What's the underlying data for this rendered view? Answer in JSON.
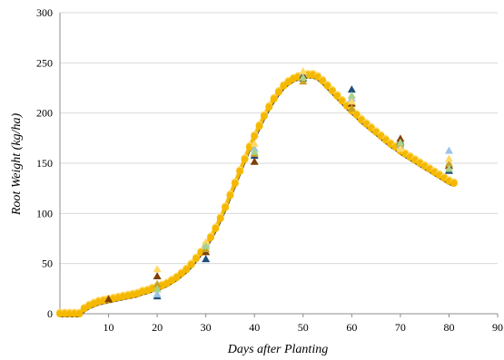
{
  "chart_data": {
    "type": "scatter",
    "title": "",
    "xlabel": "Days after Planting",
    "ylabel": "Root Weight (kg/ha)",
    "xlim": [
      0,
      90
    ],
    "ylim": [
      0,
      300
    ],
    "xticks": [
      10,
      20,
      30,
      40,
      50,
      60,
      70,
      80,
      90
    ],
    "yticks": [
      0,
      50,
      100,
      150,
      200,
      250,
      300
    ],
    "grid": "horizontal",
    "legend": "none",
    "colors": {
      "curve_light": "#FFD966",
      "curve_main": "#F5B800",
      "curve_dark": "#7F6A2A",
      "curve_darkest": "#3A3A3A",
      "grid": "#D9D9D9",
      "axis": "#8C8C8C"
    },
    "curve": {
      "x": [
        0,
        1,
        2,
        3,
        4,
        5,
        6,
        7,
        8,
        9,
        10,
        11,
        12,
        13,
        14,
        15,
        16,
        17,
        18,
        19,
        20,
        21,
        22,
        23,
        24,
        25,
        26,
        27,
        28,
        29,
        30,
        31,
        32,
        33,
        34,
        35,
        36,
        37,
        38,
        39,
        40,
        41,
        42,
        43,
        44,
        45,
        46,
        47,
        48,
        49,
        50,
        51,
        52,
        53,
        54,
        55,
        56,
        57,
        58,
        59,
        60,
        61,
        62,
        63,
        64,
        65,
        66,
        67,
        68,
        69,
        70,
        71,
        72,
        73,
        74,
        75,
        76,
        77,
        78,
        79,
        80,
        81
      ],
      "y": [
        0,
        0,
        0,
        0,
        0,
        5,
        8,
        10,
        12,
        13,
        14,
        15,
        16,
        17,
        18,
        19,
        20,
        22,
        23,
        25,
        26,
        28,
        30,
        33,
        36,
        40,
        44,
        49,
        55,
        61,
        68,
        76,
        85,
        95,
        106,
        118,
        130,
        142,
        154,
        166,
        177,
        187,
        197,
        206,
        214,
        221,
        227,
        231,
        234,
        236,
        237,
        238,
        238,
        236,
        232,
        227,
        222,
        217,
        212,
        207,
        202,
        198,
        193,
        189,
        185,
        181,
        177,
        173,
        169,
        166,
        162,
        159,
        156,
        153,
        150,
        147,
        144,
        141,
        138,
        135,
        132,
        130
      ]
    },
    "series": [
      {
        "color": "#1F4E79",
        "points": [
          [
            20,
            18
          ],
          [
            30,
            55
          ],
          [
            40,
            158
          ],
          [
            50,
            235
          ],
          [
            60,
            224
          ],
          [
            70,
            172
          ],
          [
            80,
            143
          ]
        ]
      },
      {
        "color": "#9DC3E6",
        "points": [
          [
            20,
            20
          ],
          [
            30,
            70
          ],
          [
            40,
            165
          ],
          [
            50,
            240
          ],
          [
            60,
            215
          ],
          [
            70,
            168
          ],
          [
            80,
            163
          ]
        ]
      },
      {
        "color": "#7F3F00",
        "points": [
          [
            10,
            15
          ],
          [
            20,
            38
          ],
          [
            30,
            62
          ],
          [
            40,
            152
          ],
          [
            50,
            238
          ],
          [
            60,
            210
          ],
          [
            70,
            175
          ],
          [
            80,
            148
          ]
        ]
      },
      {
        "color": "#C9A227",
        "points": [
          [
            20,
            30
          ],
          [
            30,
            65
          ],
          [
            40,
            160
          ],
          [
            50,
            232
          ],
          [
            60,
            205
          ],
          [
            70,
            170
          ],
          [
            80,
            150
          ]
        ]
      },
      {
        "color": "#FFD966",
        "points": [
          [
            20,
            45
          ],
          [
            30,
            72
          ],
          [
            40,
            170
          ],
          [
            50,
            242
          ],
          [
            60,
            212
          ],
          [
            70,
            165
          ],
          [
            80,
            155
          ]
        ]
      },
      {
        "color": "#A9D18E",
        "points": [
          [
            20,
            25
          ],
          [
            30,
            68
          ],
          [
            40,
            162
          ],
          [
            50,
            236
          ],
          [
            60,
            218
          ],
          [
            70,
            171
          ],
          [
            80,
            145
          ]
        ]
      }
    ]
  }
}
